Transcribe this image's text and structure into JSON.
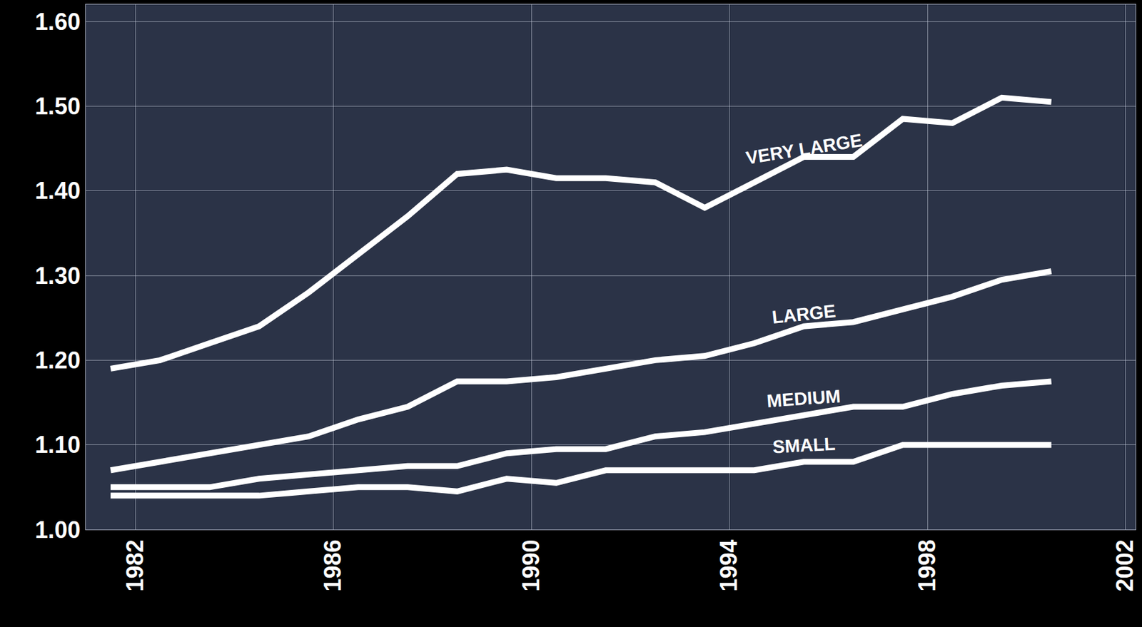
{
  "chart_data": {
    "type": "line",
    "x": [
      1981.5,
      1982.5,
      1983.5,
      1984.5,
      1985.5,
      1986.5,
      1987.5,
      1988.5,
      1989.5,
      1990.5,
      1991.5,
      1992.5,
      1993.5,
      1994.5,
      1995.5,
      1996.5,
      1997.5,
      1998.5,
      1999.5,
      2000.5
    ],
    "series": [
      {
        "name": "VERY LARGE",
        "color": "#ffffff",
        "values": [
          1.19,
          1.2,
          1.22,
          1.24,
          1.28,
          1.325,
          1.37,
          1.42,
          1.425,
          1.415,
          1.415,
          1.41,
          1.38,
          1.41,
          1.44,
          1.44,
          1.485,
          1.48,
          1.51,
          1.505
        ]
      },
      {
        "name": "LARGE",
        "color": "#ffffff",
        "values": [
          1.07,
          1.08,
          1.09,
          1.1,
          1.11,
          1.13,
          1.145,
          1.175,
          1.175,
          1.18,
          1.19,
          1.2,
          1.205,
          1.22,
          1.24,
          1.245,
          1.26,
          1.275,
          1.295,
          1.305
        ]
      },
      {
        "name": "MEDIUM",
        "color": "#ffffff",
        "values": [
          1.05,
          1.05,
          1.05,
          1.06,
          1.065,
          1.07,
          1.075,
          1.075,
          1.09,
          1.095,
          1.095,
          1.11,
          1.115,
          1.125,
          1.135,
          1.145,
          1.145,
          1.16,
          1.17,
          1.175
        ]
      },
      {
        "name": "SMALL",
        "color": "#ffffff",
        "values": [
          1.04,
          1.04,
          1.04,
          1.04,
          1.045,
          1.05,
          1.05,
          1.045,
          1.06,
          1.055,
          1.07,
          1.07,
          1.07,
          1.07,
          1.08,
          1.08,
          1.1,
          1.1,
          1.1,
          1.1
        ]
      }
    ],
    "xlim": [
      1981,
      2002.2
    ],
    "xticks": [
      1982,
      1986,
      1990,
      1994,
      1998,
      2002
    ],
    "ylim": [
      1.0,
      1.62
    ],
    "yticks": [
      {
        "value": 1.0,
        "label": "1.00"
      },
      {
        "value": 1.1,
        "label": "1.10"
      },
      {
        "value": 1.2,
        "label": "1.20"
      },
      {
        "value": 1.3,
        "label": "1.30"
      },
      {
        "value": 1.4,
        "label": "1.40"
      },
      {
        "value": 1.5,
        "label": "1.50"
      },
      {
        "value": 1.6,
        "label": "1.60"
      }
    ],
    "grid": true
  }
}
